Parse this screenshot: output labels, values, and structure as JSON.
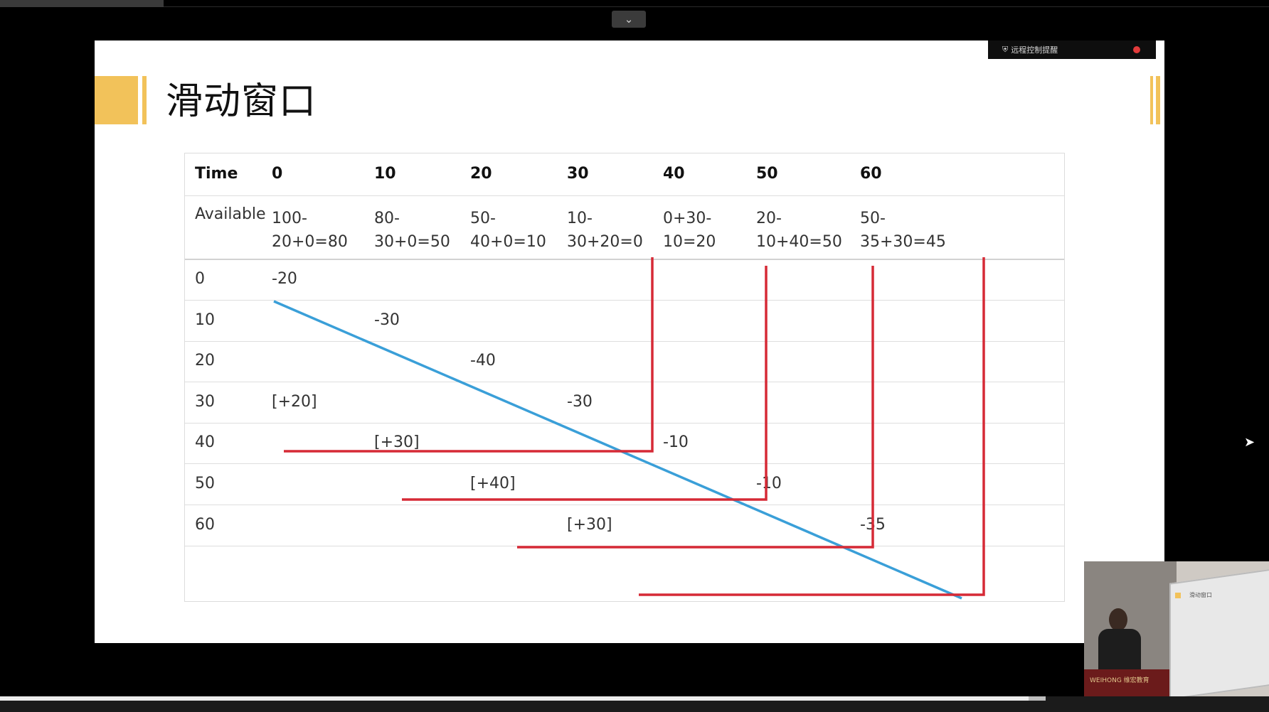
{
  "window": {
    "collapse_icon": "chevron-down-icon",
    "collapse_glyph": "⌄"
  },
  "notification": {
    "label": "远程控制提醒",
    "icon": "shield-icon",
    "badge_color": "#e23b3b"
  },
  "slide": {
    "title": "滑动窗口",
    "accent_color": "#f2c25a"
  },
  "table": {
    "header": [
      "Time",
      "0",
      "10",
      "20",
      "30",
      "40",
      "50",
      "60"
    ],
    "available": {
      "label": "Available",
      "values": [
        [
          "100-",
          "20+0=80"
        ],
        [
          "80-",
          "30+0=50"
        ],
        [
          "50-",
          "40+0=10"
        ],
        [
          "10-",
          "30+20=0"
        ],
        [
          "0+30-",
          "10=20"
        ],
        [
          "20-",
          "10+40=50"
        ],
        [
          "50-",
          "35+30=45"
        ]
      ]
    },
    "rows": [
      {
        "time": "0",
        "cells": [
          "-20",
          "",
          "",
          "",
          "",
          "",
          ""
        ]
      },
      {
        "time": "10",
        "cells": [
          "",
          "-30",
          "",
          "",
          "",
          "",
          ""
        ]
      },
      {
        "time": "20",
        "cells": [
          "",
          "",
          "-40",
          "",
          "",
          "",
          ""
        ]
      },
      {
        "time": "30",
        "cells": [
          "[+20]",
          "",
          "",
          "-30",
          "",
          "",
          ""
        ]
      },
      {
        "time": "40",
        "cells": [
          "",
          "[+30]",
          "",
          "",
          "-10",
          "",
          ""
        ]
      },
      {
        "time": "50",
        "cells": [
          "",
          "",
          "[+40]",
          "",
          "",
          "-10",
          ""
        ]
      },
      {
        "time": "60",
        "cells": [
          "",
          "",
          "",
          "[+30]",
          "",
          "",
          "-35"
        ]
      }
    ],
    "annotation_colors": {
      "diagonal": "#3a9fd8",
      "brackets": "#d62a36"
    }
  },
  "webcam": {
    "podium_text": "WEIHONG 维宏教育",
    "mini_title": "滑动窗口"
  }
}
